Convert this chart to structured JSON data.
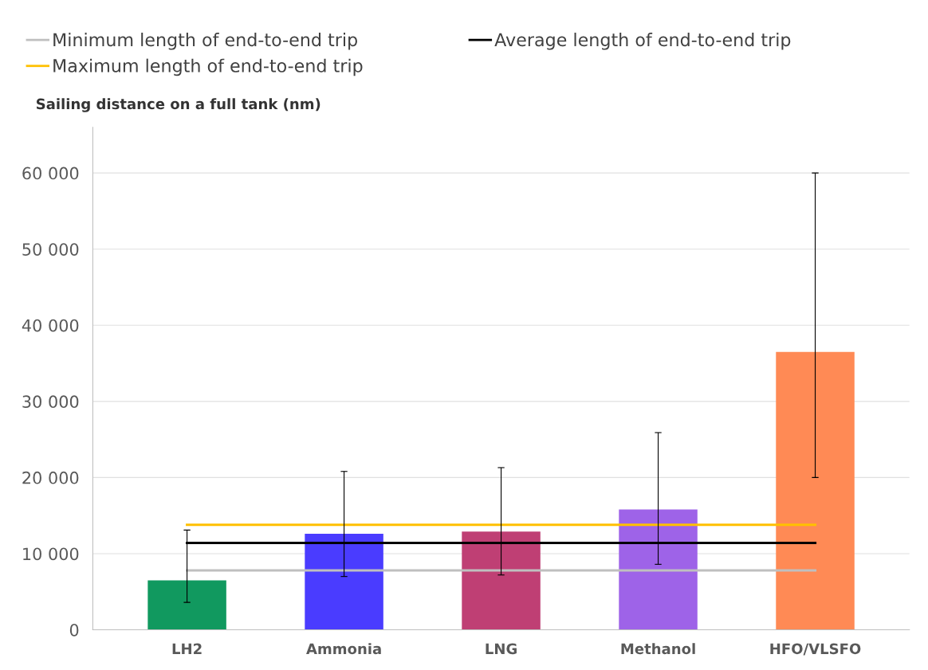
{
  "chart_data": {
    "type": "bar",
    "ylabel": "Sailing distance on a full tank (nm)",
    "categories": [
      "LH2",
      "Ammonia",
      "LNG",
      "Methanol",
      "HFO/VLSFO"
    ],
    "series": [
      {
        "colors": [
          "#11995f",
          "#4a3cff",
          "#bf3f74",
          "#9e63e8",
          "#ff8a55"
        ],
        "values": [
          6500,
          12600,
          12900,
          15800,
          36500
        ],
        "errors": [
          [
            3600,
            13100
          ],
          [
            7000,
            20800
          ],
          [
            7200,
            21300
          ],
          [
            8600,
            25900
          ],
          [
            20000,
            60000
          ]
        ]
      },
      {
        "type": "line",
        "name": "Minimum length of end-to-end trip",
        "color": "#bfbfbf",
        "values": [
          7800,
          7800,
          7800,
          7800,
          7800
        ]
      },
      {
        "type": "line",
        "name": "Average length of end-to-end trip",
        "color": "#000000",
        "values": [
          11400,
          11400,
          11400,
          11400,
          11400
        ]
      },
      {
        "type": "line",
        "name": "Maximum length of end-to-end trip",
        "color": "#ffc000",
        "values": [
          13800,
          13800,
          13800,
          13800,
          13800
        ]
      }
    ],
    "ylim": [
      0,
      66000
    ],
    "yticks": [
      {
        "value": 0,
        "label": "0"
      },
      {
        "value": 10000,
        "label": "10 000"
      },
      {
        "value": 20000,
        "label": "20 000"
      },
      {
        "value": 30000,
        "label": "30 000"
      },
      {
        "value": 40000,
        "label": "40 000"
      },
      {
        "value": 50000,
        "label": "50 000"
      },
      {
        "value": 60000,
        "label": "60 000"
      }
    ],
    "grid": "y",
    "legend": "top"
  }
}
